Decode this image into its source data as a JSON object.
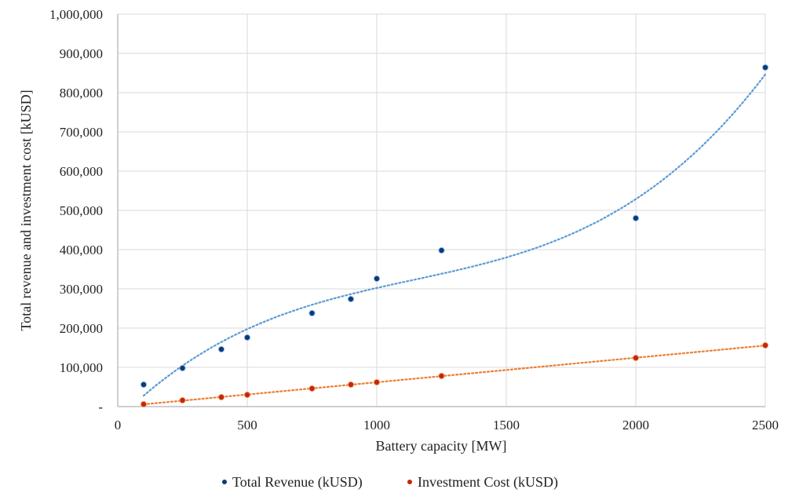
{
  "chart_data": {
    "type": "scatter",
    "title": "",
    "xlabel": "Battery capacity [MW]",
    "ylabel": "Total revenue and investment cost [kUSD]",
    "xlim": [
      0,
      2500
    ],
    "ylim": [
      0,
      1000000
    ],
    "xticks": [
      0,
      500,
      1000,
      1500,
      2000,
      2500
    ],
    "xtick_labels": [
      "0",
      "500",
      "1000",
      "1500",
      "2000",
      "2500"
    ],
    "yticks": [
      0,
      100000,
      200000,
      300000,
      400000,
      500000,
      600000,
      700000,
      800000,
      900000,
      1000000
    ],
    "ytick_labels": [
      "-",
      "100,000",
      "200,000",
      "300,000",
      "400,000",
      "500,000",
      "600,000",
      "700,000",
      "800,000",
      "900,000",
      "1,000,000"
    ],
    "grid": true,
    "legend_position": "bottom",
    "series": [
      {
        "name": "Total Revenue (kUSD)",
        "color": "#0b3a78",
        "trend_color": "#5b9bd5",
        "trendline": "polynomial-3",
        "x": [
          100,
          250,
          400,
          500,
          750,
          900,
          1000,
          1250,
          2000,
          2500
        ],
        "y": [
          56000,
          98000,
          146000,
          176000,
          238000,
          274000,
          326000,
          398000,
          480000,
          864000
        ]
      },
      {
        "name": "Investment Cost (kUSD)",
        "color": "#c0280c",
        "trend_color": "#ed7d31",
        "trendline": "linear",
        "x": [
          100,
          250,
          400,
          500,
          750,
          900,
          1000,
          1250,
          2000,
          2500
        ],
        "y": [
          6000,
          16000,
          24000,
          30000,
          46000,
          56000,
          62000,
          78000,
          124000,
          156000
        ]
      }
    ]
  }
}
